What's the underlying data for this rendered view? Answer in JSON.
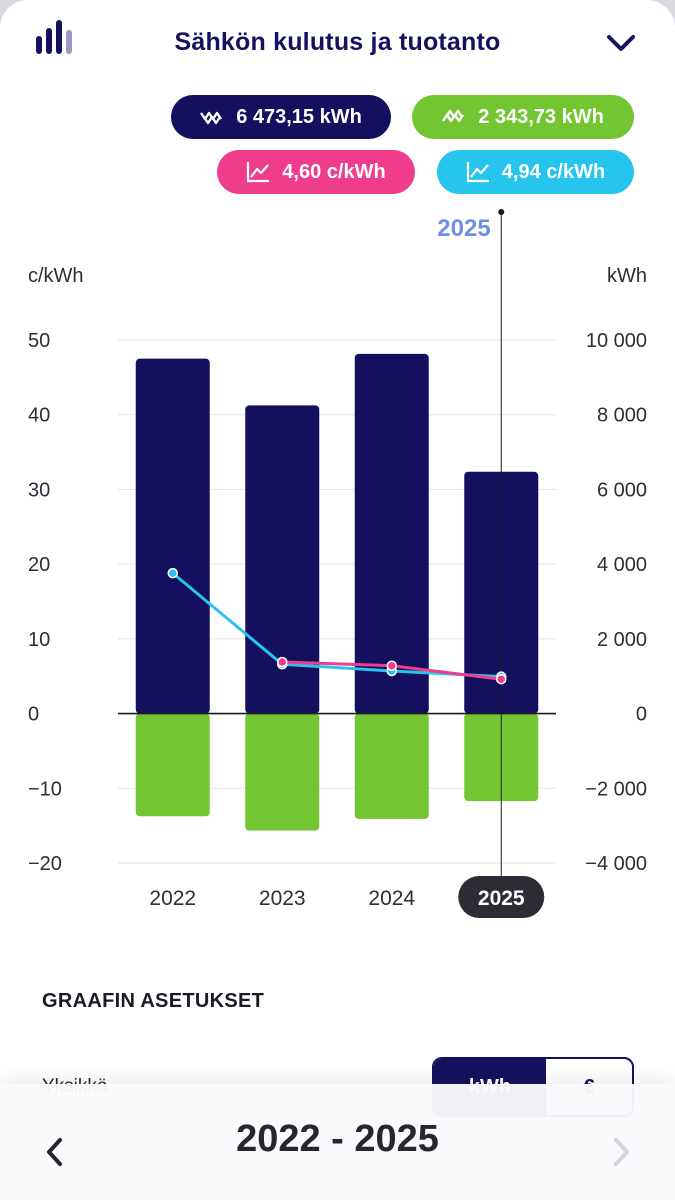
{
  "header": {
    "title": "Sähkön kulutus ja tuotanto",
    "icon": "bar-chart-icon",
    "menu_icon": "chevron-down-icon"
  },
  "summary": {
    "consumption": {
      "value": "6 473,15 kWh",
      "color": "#14105f",
      "icon": "consumption-wave-icon"
    },
    "production": {
      "value": "2 343,73 kWh",
      "color": "#73c631",
      "icon": "production-wave-icon"
    },
    "price_pink": {
      "value": "4,60 c/kWh",
      "color": "#ef3d8c",
      "icon": "price-trend-icon"
    },
    "price_blue": {
      "value": "4,94 c/kWh",
      "color": "#27c5ee",
      "icon": "price-trend-icon"
    }
  },
  "chart_data": {
    "type": "bar",
    "categories": [
      "2022",
      "2023",
      "2024",
      "2025"
    ],
    "selected_category": "2025",
    "selected_label": "2025",
    "left_axis": {
      "label": "c/kWh",
      "range": [
        -20,
        50
      ],
      "ticks": [
        "50",
        "40",
        "30",
        "20",
        "10",
        "0",
        "−10",
        "−20"
      ]
    },
    "right_axis": {
      "label": "kWh",
      "range": [
        -4000,
        10000
      ],
      "ticks": [
        "10 000",
        "8 000",
        "6 000",
        "4 000",
        "2 000",
        "0",
        "−2 000",
        "−4 000"
      ]
    },
    "grid": true,
    "series": [
      {
        "role": "consumption",
        "type": "bar",
        "axis": "right",
        "color": "#14105f",
        "values": [
          9500,
          8250,
          9630,
          6473
        ]
      },
      {
        "role": "production",
        "type": "bar",
        "axis": "right",
        "color": "#73c631",
        "values": [
          -2750,
          -3130,
          -2820,
          -2344
        ]
      },
      {
        "role": "price_blue",
        "type": "line",
        "axis": "left",
        "color": "#27c5ee",
        "values": [
          18.8,
          6.6,
          5.7,
          4.94
        ]
      },
      {
        "role": "price_pink",
        "type": "line",
        "axis": "left",
        "color": "#ef3d8c",
        "values": [
          null,
          6.9,
          6.4,
          4.6
        ]
      }
    ]
  },
  "settings": {
    "title": "GRAAFIN ASETUKSET",
    "row_label": "Yksikkö",
    "toggle": {
      "selected": "kWh",
      "other": "€"
    }
  },
  "footer": {
    "range": "2022 - 2025",
    "prev_icon": "chevron-left-icon",
    "next_icon": "chevron-right-icon"
  }
}
